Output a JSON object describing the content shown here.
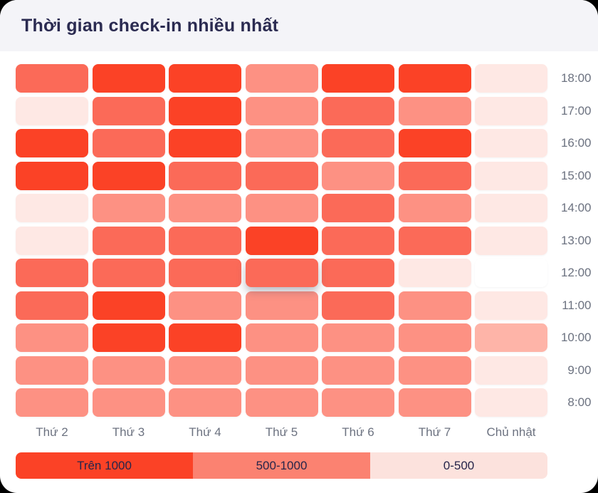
{
  "header": {
    "title": "Thời gian check-in nhiều nhất"
  },
  "colors": {
    "card_background": "#ffffff",
    "header_background": "#f4f4f8",
    "title_text": "#2b2b51",
    "axis_label_text": "#6c7280",
    "legend_text": "#26254a"
  },
  "chart_data": {
    "type": "heatmap",
    "title": "Thời gian check-in nhiều nhất",
    "x_labels": [
      "Thứ 2",
      "Thứ 3",
      "Thứ 4",
      "Thứ 5",
      "Thứ 6",
      "Thứ 7",
      "Chủ nhật"
    ],
    "y_labels": [
      "18:00",
      "17:00",
      "16:00",
      "15:00",
      "14:00",
      "13:00",
      "12:00",
      "11:00",
      "10:00",
      "9:00",
      "8:00"
    ],
    "value_unit": "check-ins",
    "palette": {
      "high": "#fb4226",
      "medium": "#fb6a58",
      "low": "#fd9183",
      "very_low": "#feb4a8",
      "minimal": "#fee8e4",
      "none": "#ffffff"
    },
    "value_by_level": {
      "high": 1250,
      "medium": 820,
      "low": 610,
      "very_low": 380,
      "minimal": 160,
      "none": 0
    },
    "rows": [
      {
        "time": "18:00",
        "levels": [
          "medium",
          "high",
          "high",
          "low",
          "high",
          "high",
          "minimal"
        ],
        "values": [
          820,
          1250,
          1250,
          610,
          1250,
          1250,
          160
        ]
      },
      {
        "time": "17:00",
        "levels": [
          "minimal",
          "medium",
          "high",
          "low",
          "medium",
          "low",
          "minimal"
        ],
        "values": [
          160,
          820,
          1250,
          610,
          820,
          610,
          160
        ]
      },
      {
        "time": "16:00",
        "levels": [
          "high",
          "medium",
          "high",
          "low",
          "medium",
          "high",
          "minimal"
        ],
        "values": [
          1250,
          820,
          1250,
          610,
          820,
          1250,
          160
        ]
      },
      {
        "time": "15:00",
        "levels": [
          "high",
          "high",
          "medium",
          "medium",
          "low",
          "medium",
          "minimal"
        ],
        "values": [
          1250,
          1250,
          820,
          820,
          610,
          820,
          160
        ]
      },
      {
        "time": "14:00",
        "levels": [
          "minimal",
          "low",
          "low",
          "low",
          "medium",
          "low",
          "minimal"
        ],
        "values": [
          160,
          610,
          610,
          610,
          820,
          610,
          160
        ]
      },
      {
        "time": "13:00",
        "levels": [
          "minimal",
          "medium",
          "medium",
          "high",
          "medium",
          "medium",
          "minimal"
        ],
        "values": [
          160,
          820,
          820,
          1250,
          820,
          820,
          160
        ]
      },
      {
        "time": "12:00",
        "levels": [
          "medium",
          "medium",
          "medium",
          "medium",
          "medium",
          "minimal",
          "none"
        ],
        "values": [
          820,
          820,
          820,
          820,
          820,
          160,
          0
        ]
      },
      {
        "time": "11:00",
        "levels": [
          "medium",
          "high",
          "low",
          "low",
          "medium",
          "low",
          "minimal"
        ],
        "values": [
          820,
          1250,
          610,
          610,
          820,
          610,
          160
        ]
      },
      {
        "time": "10:00",
        "levels": [
          "low",
          "high",
          "high",
          "low",
          "low",
          "low",
          "very_low"
        ],
        "values": [
          610,
          1250,
          1250,
          610,
          610,
          610,
          380
        ]
      },
      {
        "time": "9:00",
        "levels": [
          "low",
          "low",
          "low",
          "low",
          "low",
          "low",
          "minimal"
        ],
        "values": [
          610,
          610,
          610,
          610,
          610,
          610,
          160
        ]
      },
      {
        "time": "8:00",
        "levels": [
          "low",
          "low",
          "low",
          "low",
          "low",
          "low",
          "minimal"
        ],
        "values": [
          610,
          610,
          610,
          610,
          610,
          610,
          160
        ]
      }
    ],
    "elevated_cell": {
      "row": 6,
      "col": 3
    },
    "legend": {
      "position": "bottom",
      "items": [
        {
          "label": "Trên 1000",
          "color": "#fb4226"
        },
        {
          "label": "500-1000",
          "color": "#fb8271"
        },
        {
          "label": "0-500",
          "color": "#fce2dd"
        }
      ]
    },
    "grid_lines": false
  }
}
